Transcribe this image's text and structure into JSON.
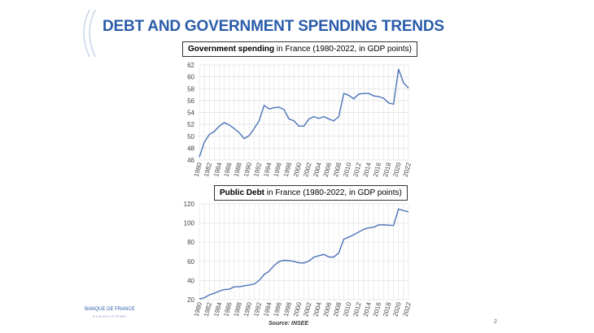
{
  "header": {
    "title": "DEBT AND GOVERNMENT SPENDING TRENDS"
  },
  "footer": {
    "source": "Source: INSEE",
    "page": "2",
    "logo_text": "BANQUE DE FRANCE",
    "logo_sub": "EUROSYSTÈME"
  },
  "chart_data": [
    {
      "type": "line",
      "title_bold": "Government spending",
      "title_rest": " in France (1980-2022, in GDP points)",
      "ylim": [
        46,
        62
      ],
      "yticks": [
        46,
        48,
        50,
        52,
        54,
        56,
        58,
        60,
        62
      ],
      "color": "#4a72b8",
      "x": [
        1980,
        1981,
        1982,
        1983,
        1984,
        1985,
        1986,
        1987,
        1988,
        1989,
        1990,
        1991,
        1992,
        1993,
        1994,
        1995,
        1996,
        1997,
        1998,
        1999,
        2000,
        2001,
        2002,
        2003,
        2004,
        2005,
        2006,
        2007,
        2008,
        2009,
        2010,
        2011,
        2012,
        2013,
        2014,
        2015,
        2016,
        2017,
        2018,
        2019,
        2020,
        2021,
        2022
      ],
      "values": [
        46.5,
        49.0,
        50.3,
        50.8,
        51.7,
        52.3,
        51.9,
        51.3,
        50.6,
        49.6,
        50.1,
        51.3,
        52.6,
        55.2,
        54.6,
        54.8,
        54.9,
        54.5,
        52.9,
        52.6,
        51.7,
        51.7,
        52.9,
        53.3,
        53.0,
        53.3,
        52.9,
        52.6,
        53.3,
        57.2,
        56.9,
        56.3,
        57.1,
        57.2,
        57.2,
        56.8,
        56.7,
        56.4,
        55.6,
        55.4,
        61.3,
        59.0,
        58.1
      ]
    },
    {
      "type": "line",
      "title_bold": "Public Debt",
      "title_rest": " in France (1980-2022, in GDP points)",
      "ylim": [
        20,
        120
      ],
      "yticks": [
        20,
        40,
        60,
        80,
        100,
        120
      ],
      "color": "#4a72b8",
      "x": [
        1980,
        1981,
        1982,
        1983,
        1984,
        1985,
        1986,
        1987,
        1988,
        1989,
        1990,
        1991,
        1992,
        1993,
        1994,
        1995,
        1996,
        1997,
        1998,
        1999,
        2000,
        2001,
        2002,
        2003,
        2004,
        2005,
        2006,
        2007,
        2008,
        2009,
        2010,
        2011,
        2012,
        2013,
        2014,
        2015,
        2016,
        2017,
        2018,
        2019,
        2020,
        2021,
        2022
      ],
      "values": [
        20.8,
        22,
        25,
        26.7,
        29,
        30.5,
        31,
        33.5,
        33.5,
        34.5,
        35.3,
        36.3,
        40,
        46.2,
        49.7,
        55.6,
        59.8,
        61.1,
        60.7,
        60,
        58.5,
        58.3,
        60.3,
        64.4,
        65.9,
        67.2,
        64.6,
        64.5,
        68.8,
        83,
        85.3,
        87.8,
        90.6,
        93.4,
        94.9,
        95.6,
        98,
        98.1,
        97.8,
        97.4,
        114.6,
        112.9,
        111.8
      ]
    }
  ]
}
